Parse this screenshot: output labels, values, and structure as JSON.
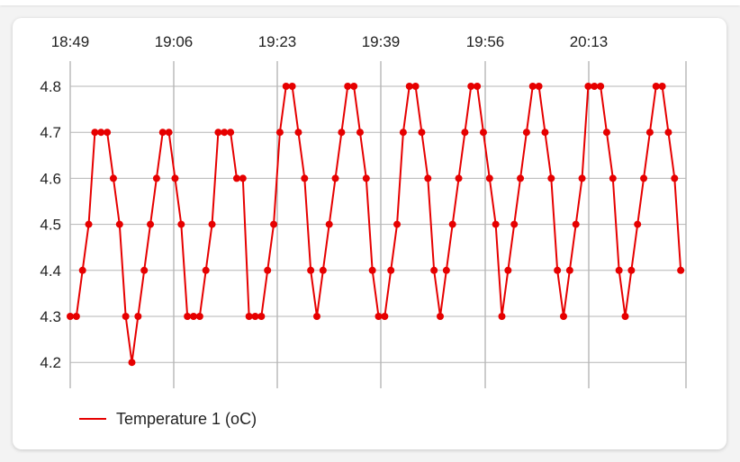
{
  "chart_data": {
    "type": "line",
    "title": "",
    "xlabel": "",
    "ylabel": "",
    "x_tick_labels": [
      "18:49",
      "19:06",
      "19:23",
      "19:39",
      "19:56",
      "20:13"
    ],
    "y_tick_labels": [
      "4.2",
      "4.3",
      "4.4",
      "4.5",
      "4.6",
      "4.7",
      "4.8"
    ],
    "ylim": [
      4.15,
      4.85
    ],
    "grid": true,
    "legend_position": "bottom-left",
    "series": [
      {
        "name": "Temperature 1 (oC)",
        "color": "#e60000",
        "values": [
          4.3,
          4.3,
          4.4,
          4.5,
          4.7,
          4.7,
          4.7,
          4.6,
          4.5,
          4.3,
          4.2,
          4.3,
          4.4,
          4.5,
          4.6,
          4.7,
          4.7,
          4.6,
          4.5,
          4.3,
          4.3,
          4.3,
          4.4,
          4.5,
          4.7,
          4.7,
          4.7,
          4.6,
          4.6,
          4.3,
          4.3,
          4.3,
          4.4,
          4.5,
          4.7,
          4.8,
          4.8,
          4.7,
          4.6,
          4.4,
          4.3,
          4.4,
          4.5,
          4.6,
          4.7,
          4.8,
          4.8,
          4.7,
          4.6,
          4.4,
          4.3,
          4.3,
          4.4,
          4.5,
          4.7,
          4.8,
          4.8,
          4.7,
          4.6,
          4.4,
          4.3,
          4.4,
          4.5,
          4.6,
          4.7,
          4.8,
          4.8,
          4.7,
          4.6,
          4.5,
          4.3,
          4.4,
          4.5,
          4.6,
          4.7,
          4.8,
          4.8,
          4.7,
          4.6,
          4.4,
          4.3,
          4.4,
          4.5,
          4.6,
          4.8,
          4.8,
          4.8,
          4.7,
          4.6,
          4.4,
          4.3,
          4.4,
          4.5,
          4.6,
          4.7,
          4.8,
          4.8,
          4.7,
          4.6,
          4.4
        ]
      }
    ]
  }
}
